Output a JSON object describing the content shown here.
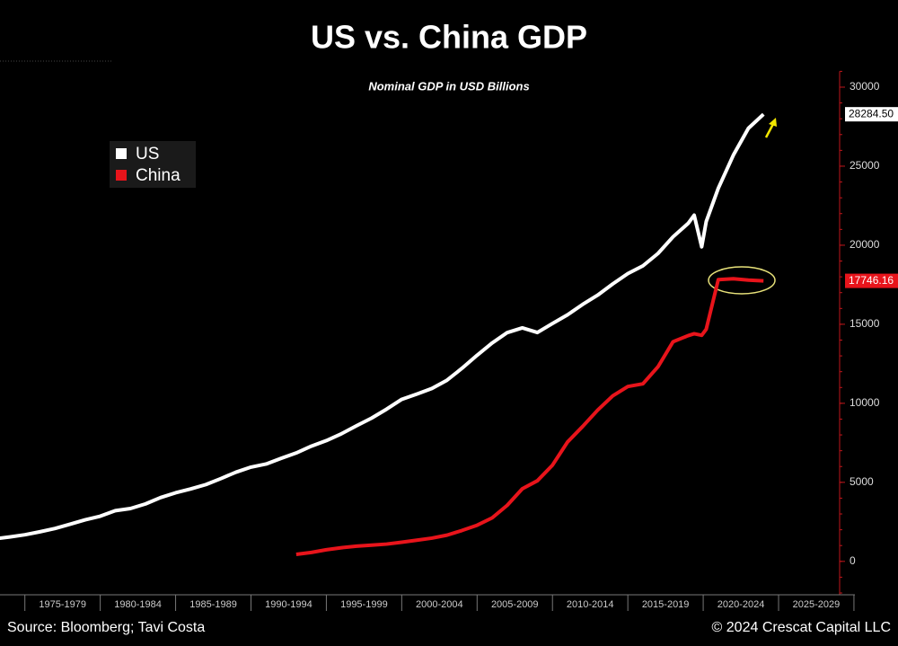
{
  "chart_data": {
    "type": "line",
    "title": "US vs. China GDP",
    "subtitle": "Nominal GDP in USD Billions",
    "source": "Source: Bloomberg; Tavi Costa",
    "copyright": "© 2024 Crescat Capital LLC",
    "x": [
      1973.5,
      1974.5,
      1975.5,
      1976.5,
      1977.5,
      1978.5,
      1979.5,
      1980.5,
      1981.5,
      1982.5,
      1983.5,
      1984.5,
      1985.5,
      1986.5,
      1987.5,
      1988.5,
      1989.5,
      1990.5,
      1991.5,
      1992.5,
      1993.5,
      1994.5,
      1995.5,
      1996.5,
      1997.5,
      1998.5,
      1999.5,
      2000.5,
      2001.5,
      2002.5,
      2003.5,
      2004.5,
      2005.5,
      2006.5,
      2007.5,
      2008.5,
      2009.5,
      2010.5,
      2011.5,
      2012.5,
      2013.5,
      2014.5,
      2015.5,
      2016.5,
      2017.5,
      2018.5,
      2019.5,
      2019.9,
      2020.4,
      2020.7,
      2021.5,
      2022.5,
      2023.5,
      2024.5
    ],
    "series": [
      {
        "name": "US",
        "color": "#ffffff",
        "values": [
          1425,
          1545,
          1685,
          1873,
          2082,
          2352,
          2627,
          2857,
          3207,
          3343,
          3634,
          4037,
          4339,
          4580,
          4855,
          5236,
          5642,
          5963,
          6158,
          6520,
          6859,
          7287,
          7640,
          8073,
          8578,
          9063,
          9631,
          10251,
          10582,
          10936,
          11458,
          12217,
          13039,
          13816,
          14474,
          14770,
          14478,
          15049,
          15600,
          16254,
          16843,
          17551,
          18206,
          18695,
          19477,
          20533,
          21381,
          21900,
          19900,
          21500,
          23600,
          25700,
          27400,
          28284.5
        ],
        "end_label": {
          "value": 28284.5,
          "label": "28284.50"
        }
      },
      {
        "name": "China",
        "color": "#e8141b",
        "values": [
          null,
          null,
          null,
          null,
          null,
          null,
          null,
          null,
          null,
          null,
          null,
          null,
          null,
          null,
          null,
          null,
          null,
          null,
          null,
          null,
          444,
          564,
          734,
          863,
          961,
          1029,
          1094,
          1211,
          1339,
          1471,
          1660,
          1955,
          2286,
          2752,
          3550,
          4594,
          5102,
          6087,
          7552,
          8532,
          9570,
          10475,
          11061,
          11233,
          12310,
          13895,
          14280,
          14400,
          14300,
          14688,
          17820,
          17882,
          17795,
          17746.16
        ],
        "end_label": {
          "value": 17746.16,
          "label": "17746.16"
        }
      }
    ],
    "xlim": [
      1973.85,
      2029.55
    ],
    "xticks": [
      {
        "value": 1975.5,
        "label": "1975-1979"
      },
      {
        "value": 1980.5,
        "label": "1980-1984"
      },
      {
        "value": 1985.5,
        "label": "1985-1989"
      },
      {
        "value": 1990.5,
        "label": "1990-1994"
      },
      {
        "value": 1995.5,
        "label": "1995-1999"
      },
      {
        "value": 2000.5,
        "label": "2000-2004"
      },
      {
        "value": 2005.5,
        "label": "2005-2009"
      },
      {
        "value": 2010.5,
        "label": "2010-2014"
      },
      {
        "value": 2015.5,
        "label": "2015-2019"
      },
      {
        "value": 2020.5,
        "label": "2020-2024"
      },
      {
        "value": 2025.5,
        "label": "2025-2029"
      }
    ],
    "ylim": [
      -2000,
      31000
    ],
    "yticks": [
      0,
      5000,
      10000,
      15000,
      20000,
      25000,
      30000
    ],
    "y_axis_side": "right",
    "legend": "top-left",
    "grid": false
  }
}
